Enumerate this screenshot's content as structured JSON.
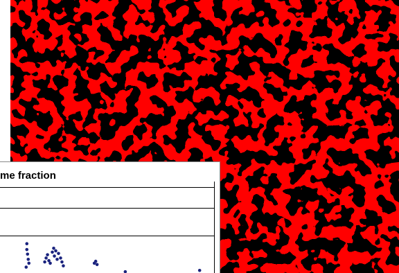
{
  "chart_data": {
    "type": "scatter",
    "title": "me fraction",
    "color": "#1a237e",
    "x": [
      3.9,
      3.9,
      4.0,
      4.1,
      4.2,
      3.8,
      6.5,
      6.7,
      6.9,
      7.1,
      7.3,
      7.6,
      7.8,
      7.9,
      8.1,
      8.3,
      8.5,
      8.8,
      9.0,
      9.2,
      13.7,
      13.9,
      14.1,
      18.2,
      29.0
    ],
    "values": [
      4.5,
      3.6,
      2.9,
      2.1,
      1.5,
      0.9,
      1.7,
      2.3,
      2.8,
      1.9,
      1.5,
      3.2,
      3.8,
      2.6,
      3.4,
      2.1,
      3.0,
      2.3,
      1.7,
      1.1,
      1.5,
      1.8,
      1.3,
      0.2,
      0.4
    ],
    "xlim": [
      0,
      32
    ],
    "ylim": [
      0,
      10
    ]
  }
}
